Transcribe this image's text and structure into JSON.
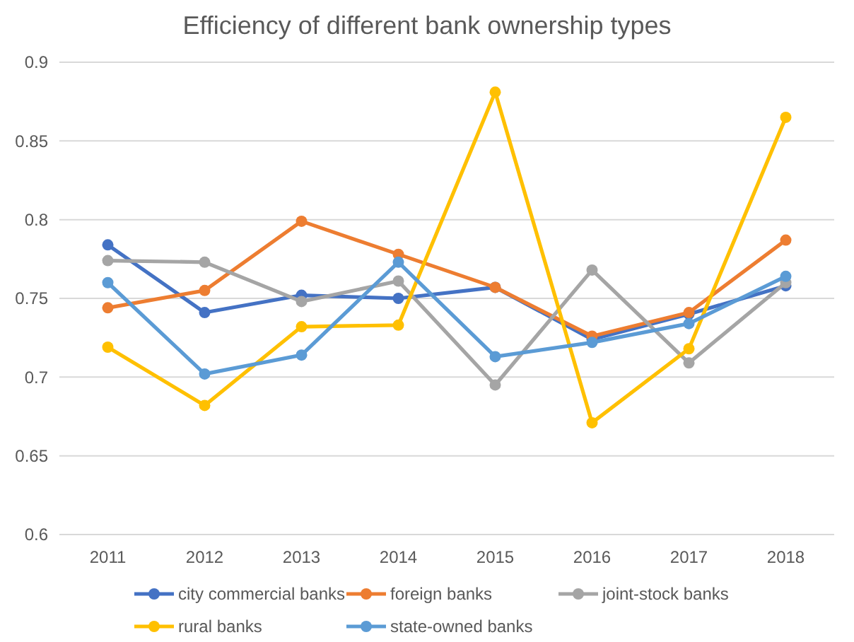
{
  "chart_data": {
    "type": "line",
    "title": "Efficiency of different bank ownership types",
    "categories": [
      "2011",
      "2012",
      "2013",
      "2014",
      "2015",
      "2016",
      "2017",
      "2018"
    ],
    "series": [
      {
        "name": "city commercial banks",
        "color": "#4472c4",
        "values": [
          0.784,
          0.741,
          0.752,
          0.75,
          0.757,
          0.724,
          0.74,
          0.758
        ]
      },
      {
        "name": "foreign banks",
        "color": "#ed7d31",
        "values": [
          0.744,
          0.755,
          0.799,
          0.778,
          0.757,
          0.726,
          0.741,
          0.787
        ]
      },
      {
        "name": "joint-stock banks",
        "color": "#a5a5a5",
        "values": [
          0.774,
          0.773,
          0.748,
          0.761,
          0.695,
          0.768,
          0.709,
          0.76
        ]
      },
      {
        "name": "rural banks",
        "color": "#ffc000",
        "values": [
          0.719,
          0.682,
          0.732,
          0.733,
          0.881,
          0.671,
          0.718,
          0.865
        ]
      },
      {
        "name": "state-owned banks",
        "color": "#5b9bd5",
        "values": [
          0.76,
          0.702,
          0.714,
          0.773,
          0.713,
          0.722,
          0.734,
          0.764
        ]
      }
    ],
    "ylim": [
      0.6,
      0.9
    ],
    "yticks": [
      0.6,
      0.65,
      0.7,
      0.75,
      0.8,
      0.85,
      0.9
    ],
    "grid": "y",
    "legend": "bottom",
    "marker": "circle",
    "line_style": "solid"
  }
}
